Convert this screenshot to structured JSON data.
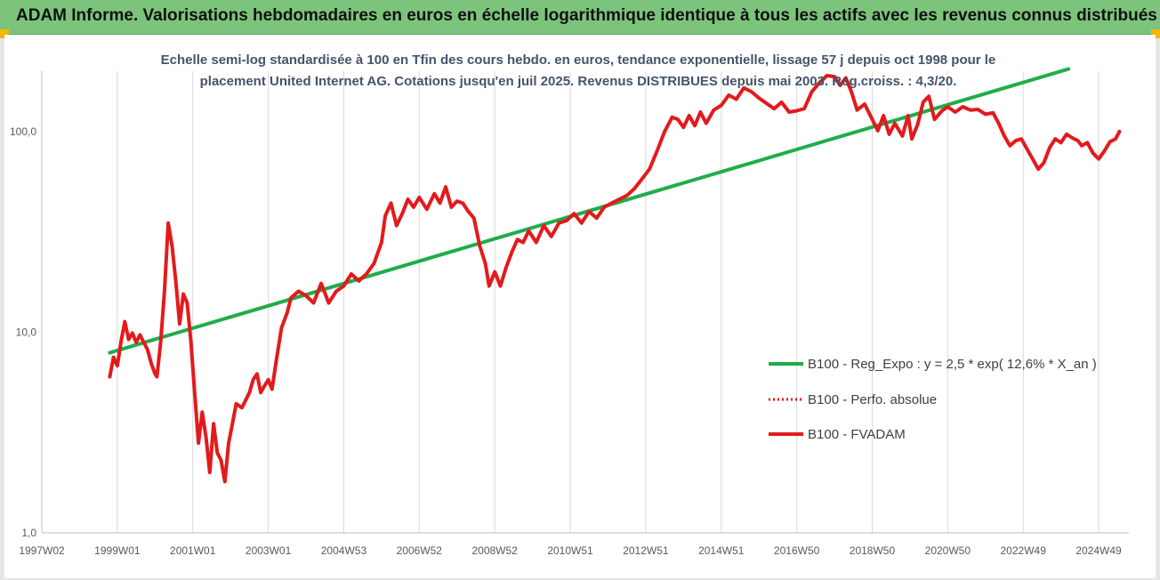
{
  "header": {
    "title": "ADAM Informe. Valorisations hebdomadaires en euros en échelle logarithmique identique à tous les actifs avec les revenus connus distribués"
  },
  "colors": {
    "banner": "#7cc47c",
    "accent": "#f2b900",
    "trend": "#1fad4a",
    "price": "#e31a1c",
    "subtitle": "#44546a"
  },
  "chart_data": {
    "type": "line",
    "subtitle": [
      "Echelle semi-log standardisée à 100 en Tfin des cours hebdo. en euros, tendance exponentielle, lissage 57 j depuis oct 1998 pour le",
      "placement United Internet AG. Cotations jusqu'en juil 2025. Revenus DISTRIBUES depuis mai 2003. Reg.croiss. : 4,3/20."
    ],
    "y_scale": "log",
    "ylim": [
      1,
      200
    ],
    "y_ticks": [
      {
        "value": 1,
        "label": "1,0"
      },
      {
        "value": 10,
        "label": "10,0"
      },
      {
        "value": 100,
        "label": "100,0"
      }
    ],
    "xlim": [
      1997.0,
      2025.8
    ],
    "x_ticks": [
      {
        "value": 1997.0,
        "label": "1997W02"
      },
      {
        "value": 1999.0,
        "label": "1999W01"
      },
      {
        "value": 2001.0,
        "label": "2001W01"
      },
      {
        "value": 2003.0,
        "label": "2003W01"
      },
      {
        "value": 2005.0,
        "label": "2004W53"
      },
      {
        "value": 2007.0,
        "label": "2006W52"
      },
      {
        "value": 2009.0,
        "label": "2008W52"
      },
      {
        "value": 2011.0,
        "label": "2010W51"
      },
      {
        "value": 2013.0,
        "label": "2012W51"
      },
      {
        "value": 2015.0,
        "label": "2014W51"
      },
      {
        "value": 2017.0,
        "label": "2016W50"
      },
      {
        "value": 2019.0,
        "label": "2018W50"
      },
      {
        "value": 2021.0,
        "label": "2020W50"
      },
      {
        "value": 2023.0,
        "label": "2022W49"
      },
      {
        "value": 2025.0,
        "label": "2024W49"
      }
    ],
    "grid": "vertical",
    "legend_position": "right",
    "series": [
      {
        "name": "B100 - Reg_Expo : y = 2,5 * exp( 12,6% *  X_an )",
        "style": "solid",
        "color": "#1fad4a",
        "points": [
          [
            1998.8,
            7.9
          ],
          [
            2024.2,
            205
          ]
        ]
      },
      {
        "name": "B100 - Perfo. absolue",
        "style": "dotted",
        "color": "#e31a1c",
        "points": []
      },
      {
        "name": "B100 - FVADAM",
        "style": "solid",
        "color": "#e31a1c",
        "points": [
          [
            1998.8,
            6.0
          ],
          [
            1998.9,
            7.5
          ],
          [
            1999.0,
            6.8
          ],
          [
            1999.1,
            9.0
          ],
          [
            1999.2,
            11.3
          ],
          [
            1999.3,
            9.2
          ],
          [
            1999.4,
            9.9
          ],
          [
            1999.5,
            8.9
          ],
          [
            1999.6,
            9.7
          ],
          [
            1999.8,
            8.2
          ],
          [
            1999.9,
            7.0
          ],
          [
            2000.0,
            6.2
          ],
          [
            2000.05,
            6.0
          ],
          [
            2000.15,
            9.0
          ],
          [
            2000.25,
            16.0
          ],
          [
            2000.35,
            35.0
          ],
          [
            2000.45,
            27.0
          ],
          [
            2000.55,
            18.0
          ],
          [
            2000.65,
            11.0
          ],
          [
            2000.75,
            15.5
          ],
          [
            2000.85,
            14.0
          ],
          [
            2000.95,
            9.0
          ],
          [
            2001.05,
            5.0
          ],
          [
            2001.15,
            2.8
          ],
          [
            2001.25,
            4.0
          ],
          [
            2001.35,
            3.0
          ],
          [
            2001.45,
            2.0
          ],
          [
            2001.55,
            3.5
          ],
          [
            2001.65,
            2.5
          ],
          [
            2001.75,
            2.3
          ],
          [
            2001.85,
            1.8
          ],
          [
            2001.95,
            2.8
          ],
          [
            2002.05,
            3.5
          ],
          [
            2002.15,
            4.4
          ],
          [
            2002.3,
            4.2
          ],
          [
            2002.5,
            5.0
          ],
          [
            2002.6,
            5.8
          ],
          [
            2002.7,
            6.2
          ],
          [
            2002.8,
            5.0
          ],
          [
            2002.9,
            5.4
          ],
          [
            2003.0,
            5.8
          ],
          [
            2003.1,
            5.2
          ],
          [
            2003.2,
            7.0
          ],
          [
            2003.35,
            10.5
          ],
          [
            2003.5,
            12.5
          ],
          [
            2003.6,
            14.8
          ],
          [
            2003.8,
            16.0
          ],
          [
            2004.0,
            15.2
          ],
          [
            2004.2,
            14.0
          ],
          [
            2004.4,
            17.5
          ],
          [
            2004.6,
            14.0
          ],
          [
            2004.8,
            16.0
          ],
          [
            2005.0,
            17.0
          ],
          [
            2005.2,
            19.5
          ],
          [
            2005.4,
            18.0
          ],
          [
            2005.6,
            19.5
          ],
          [
            2005.8,
            22.0
          ],
          [
            2006.0,
            28.0
          ],
          [
            2006.1,
            38.0
          ],
          [
            2006.25,
            44.0
          ],
          [
            2006.4,
            34.0
          ],
          [
            2006.55,
            39.0
          ],
          [
            2006.7,
            46.0
          ],
          [
            2006.85,
            42.0
          ],
          [
            2007.0,
            47.0
          ],
          [
            2007.2,
            41.0
          ],
          [
            2007.4,
            49.0
          ],
          [
            2007.55,
            44.0
          ],
          [
            2007.7,
            53.0
          ],
          [
            2007.85,
            42.0
          ],
          [
            2008.0,
            45.0
          ],
          [
            2008.15,
            44.0
          ],
          [
            2008.3,
            40.0
          ],
          [
            2008.45,
            37.0
          ],
          [
            2008.6,
            27.0
          ],
          [
            2008.75,
            22.0
          ],
          [
            2008.85,
            17.0
          ],
          [
            2009.0,
            20.0
          ],
          [
            2009.15,
            17.0
          ],
          [
            2009.3,
            21.0
          ],
          [
            2009.45,
            25.0
          ],
          [
            2009.6,
            29.0
          ],
          [
            2009.75,
            28.0
          ],
          [
            2009.9,
            32.0
          ],
          [
            2010.1,
            28.0
          ],
          [
            2010.3,
            34.0
          ],
          [
            2010.5,
            30.0
          ],
          [
            2010.7,
            35.0
          ],
          [
            2010.9,
            36.0
          ],
          [
            2011.1,
            39.0
          ],
          [
            2011.3,
            35.0
          ],
          [
            2011.5,
            40.0
          ],
          [
            2011.7,
            37.0
          ],
          [
            2011.9,
            42.0
          ],
          [
            2012.1,
            44.0
          ],
          [
            2012.3,
            46.0
          ],
          [
            2012.5,
            48.0
          ],
          [
            2012.7,
            52.0
          ],
          [
            2012.9,
            58.0
          ],
          [
            2013.1,
            65.0
          ],
          [
            2013.3,
            80.0
          ],
          [
            2013.5,
            100.0
          ],
          [
            2013.7,
            118.0
          ],
          [
            2013.85,
            115.0
          ],
          [
            2014.0,
            105.0
          ],
          [
            2014.15,
            120.0
          ],
          [
            2014.3,
            107.0
          ],
          [
            2014.45,
            125.0
          ],
          [
            2014.6,
            110.0
          ],
          [
            2014.8,
            128.0
          ],
          [
            2015.0,
            135.0
          ],
          [
            2015.2,
            152.0
          ],
          [
            2015.4,
            145.0
          ],
          [
            2015.6,
            165.0
          ],
          [
            2015.8,
            158.0
          ],
          [
            2016.0,
            147.0
          ],
          [
            2016.2,
            138.0
          ],
          [
            2016.4,
            130.0
          ],
          [
            2016.6,
            140.0
          ],
          [
            2016.8,
            125.0
          ],
          [
            2017.0,
            127.0
          ],
          [
            2017.2,
            130.0
          ],
          [
            2017.4,
            158.0
          ],
          [
            2017.6,
            175.0
          ],
          [
            2017.8,
            190.0
          ],
          [
            2018.0,
            188.0
          ],
          [
            2018.15,
            170.0
          ],
          [
            2018.3,
            185.0
          ],
          [
            2018.45,
            158.0
          ],
          [
            2018.6,
            128.0
          ],
          [
            2018.8,
            137.0
          ],
          [
            2019.0,
            115.0
          ],
          [
            2019.15,
            101.0
          ],
          [
            2019.3,
            120.0
          ],
          [
            2019.45,
            97.0
          ],
          [
            2019.6,
            110.0
          ],
          [
            2019.8,
            95.0
          ],
          [
            2019.95,
            120.0
          ],
          [
            2020.05,
            92.0
          ],
          [
            2020.2,
            108.0
          ],
          [
            2020.35,
            140.0
          ],
          [
            2020.5,
            150.0
          ],
          [
            2020.65,
            115.0
          ],
          [
            2020.85,
            127.0
          ],
          [
            2021.0,
            133.0
          ],
          [
            2021.2,
            125.0
          ],
          [
            2021.4,
            133.0
          ],
          [
            2021.6,
            128.0
          ],
          [
            2021.8,
            129.0
          ],
          [
            2022.0,
            122.0
          ],
          [
            2022.2,
            124.0
          ],
          [
            2022.35,
            110.0
          ],
          [
            2022.5,
            95.0
          ],
          [
            2022.65,
            85.0
          ],
          [
            2022.8,
            90.0
          ],
          [
            2022.95,
            92.0
          ],
          [
            2023.1,
            82.0
          ],
          [
            2023.25,
            73.0
          ],
          [
            2023.4,
            65.0
          ],
          [
            2023.55,
            70.0
          ],
          [
            2023.7,
            83.0
          ],
          [
            2023.85,
            92.0
          ],
          [
            2024.0,
            88.0
          ],
          [
            2024.15,
            97.0
          ],
          [
            2024.3,
            93.0
          ],
          [
            2024.45,
            90.0
          ],
          [
            2024.55,
            85.0
          ],
          [
            2024.7,
            88.0
          ],
          [
            2024.85,
            78.0
          ],
          [
            2025.0,
            73.0
          ],
          [
            2025.15,
            80.0
          ],
          [
            2025.3,
            89.0
          ],
          [
            2025.45,
            92.0
          ],
          [
            2025.55,
            100.0
          ]
        ]
      }
    ]
  }
}
